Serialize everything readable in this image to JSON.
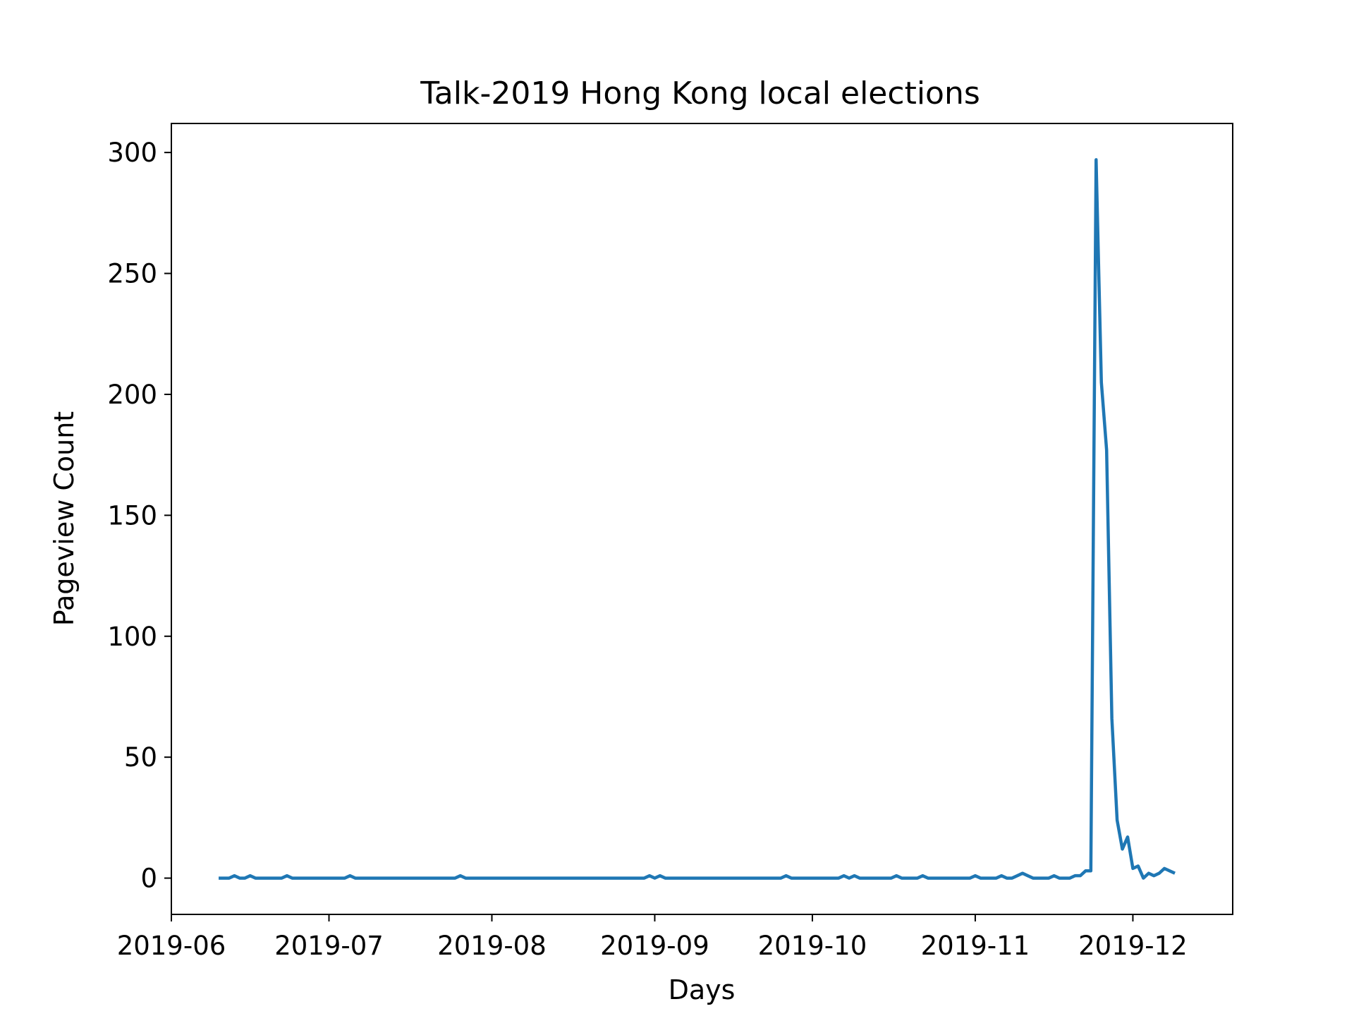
{
  "chart_data": {
    "type": "line",
    "title": "Talk-2019 Hong Kong local elections",
    "xlabel": "Days",
    "ylabel": "Pageview Count",
    "x_axis_type": "date",
    "xlim": [
      "2019-06-01",
      "2019-12-20"
    ],
    "ylim": [
      -15,
      312
    ],
    "x_ticks": [
      "2019-06-01",
      "2019-07-01",
      "2019-08-01",
      "2019-09-01",
      "2019-10-01",
      "2019-11-01",
      "2019-12-01"
    ],
    "x_tick_labels": [
      "2019-06",
      "2019-07",
      "2019-08",
      "2019-09",
      "2019-10",
      "2019-11",
      "2019-12"
    ],
    "y_ticks": [
      0,
      50,
      100,
      150,
      200,
      250,
      300
    ],
    "y_tick_labels": [
      "0",
      "50",
      "100",
      "150",
      "200",
      "250",
      "300"
    ],
    "grid": false,
    "line_color": "#1f77b4",
    "series": [
      {
        "points": [
          [
            "2019-06-10",
            0
          ],
          [
            "2019-06-11",
            0
          ],
          [
            "2019-06-12",
            0
          ],
          [
            "2019-06-13",
            1
          ],
          [
            "2019-06-14",
            0
          ],
          [
            "2019-06-15",
            0
          ],
          [
            "2019-06-16",
            1
          ],
          [
            "2019-06-17",
            0
          ],
          [
            "2019-06-18",
            0
          ],
          [
            "2019-06-19",
            0
          ],
          [
            "2019-06-20",
            0
          ],
          [
            "2019-06-21",
            0
          ],
          [
            "2019-06-22",
            0
          ],
          [
            "2019-06-23",
            1
          ],
          [
            "2019-06-24",
            0
          ],
          [
            "2019-06-25",
            0
          ],
          [
            "2019-06-26",
            0
          ],
          [
            "2019-06-27",
            0
          ],
          [
            "2019-06-28",
            0
          ],
          [
            "2019-06-29",
            0
          ],
          [
            "2019-06-30",
            0
          ],
          [
            "2019-07-01",
            0
          ],
          [
            "2019-07-02",
            0
          ],
          [
            "2019-07-03",
            0
          ],
          [
            "2019-07-04",
            0
          ],
          [
            "2019-07-05",
            1
          ],
          [
            "2019-07-06",
            0
          ],
          [
            "2019-07-10",
            0
          ],
          [
            "2019-07-15",
            0
          ],
          [
            "2019-07-20",
            0
          ],
          [
            "2019-07-25",
            0
          ],
          [
            "2019-07-26",
            1
          ],
          [
            "2019-07-27",
            0
          ],
          [
            "2019-08-01",
            0
          ],
          [
            "2019-08-10",
            0
          ],
          [
            "2019-08-20",
            0
          ],
          [
            "2019-08-30",
            0
          ],
          [
            "2019-08-31",
            1
          ],
          [
            "2019-09-01",
            0
          ],
          [
            "2019-09-02",
            1
          ],
          [
            "2019-09-03",
            0
          ],
          [
            "2019-09-10",
            0
          ],
          [
            "2019-09-20",
            0
          ],
          [
            "2019-09-25",
            0
          ],
          [
            "2019-09-26",
            1
          ],
          [
            "2019-09-27",
            0
          ],
          [
            "2019-10-01",
            0
          ],
          [
            "2019-10-06",
            0
          ],
          [
            "2019-10-07",
            1
          ],
          [
            "2019-10-08",
            0
          ],
          [
            "2019-10-09",
            1
          ],
          [
            "2019-10-10",
            0
          ],
          [
            "2019-10-15",
            0
          ],
          [
            "2019-10-16",
            0
          ],
          [
            "2019-10-17",
            1
          ],
          [
            "2019-10-18",
            0
          ],
          [
            "2019-10-21",
            0
          ],
          [
            "2019-10-22",
            1
          ],
          [
            "2019-10-23",
            0
          ],
          [
            "2019-10-27",
            0
          ],
          [
            "2019-10-31",
            0
          ],
          [
            "2019-11-01",
            1
          ],
          [
            "2019-11-02",
            0
          ],
          [
            "2019-11-05",
            0
          ],
          [
            "2019-11-06",
            1
          ],
          [
            "2019-11-07",
            0
          ],
          [
            "2019-11-08",
            0
          ],
          [
            "2019-11-09",
            1
          ],
          [
            "2019-11-10",
            2
          ],
          [
            "2019-11-11",
            1
          ],
          [
            "2019-11-12",
            0
          ],
          [
            "2019-11-13",
            0
          ],
          [
            "2019-11-14",
            0
          ],
          [
            "2019-11-15",
            0
          ],
          [
            "2019-11-16",
            1
          ],
          [
            "2019-11-17",
            0
          ],
          [
            "2019-11-18",
            0
          ],
          [
            "2019-11-19",
            0
          ],
          [
            "2019-11-20",
            1
          ],
          [
            "2019-11-21",
            1
          ],
          [
            "2019-11-22",
            3
          ],
          [
            "2019-11-23",
            3
          ],
          [
            "2019-11-24",
            297
          ],
          [
            "2019-11-25",
            205
          ],
          [
            "2019-11-26",
            177
          ],
          [
            "2019-11-27",
            66
          ],
          [
            "2019-11-28",
            24
          ],
          [
            "2019-11-29",
            12
          ],
          [
            "2019-11-30",
            17
          ],
          [
            "2019-12-01",
            4
          ],
          [
            "2019-12-02",
            5
          ],
          [
            "2019-12-03",
            0
          ],
          [
            "2019-12-04",
            2
          ],
          [
            "2019-12-05",
            1
          ],
          [
            "2019-12-06",
            2
          ],
          [
            "2019-12-07",
            4
          ],
          [
            "2019-12-08",
            3
          ],
          [
            "2019-12-09",
            2
          ]
        ]
      }
    ]
  }
}
